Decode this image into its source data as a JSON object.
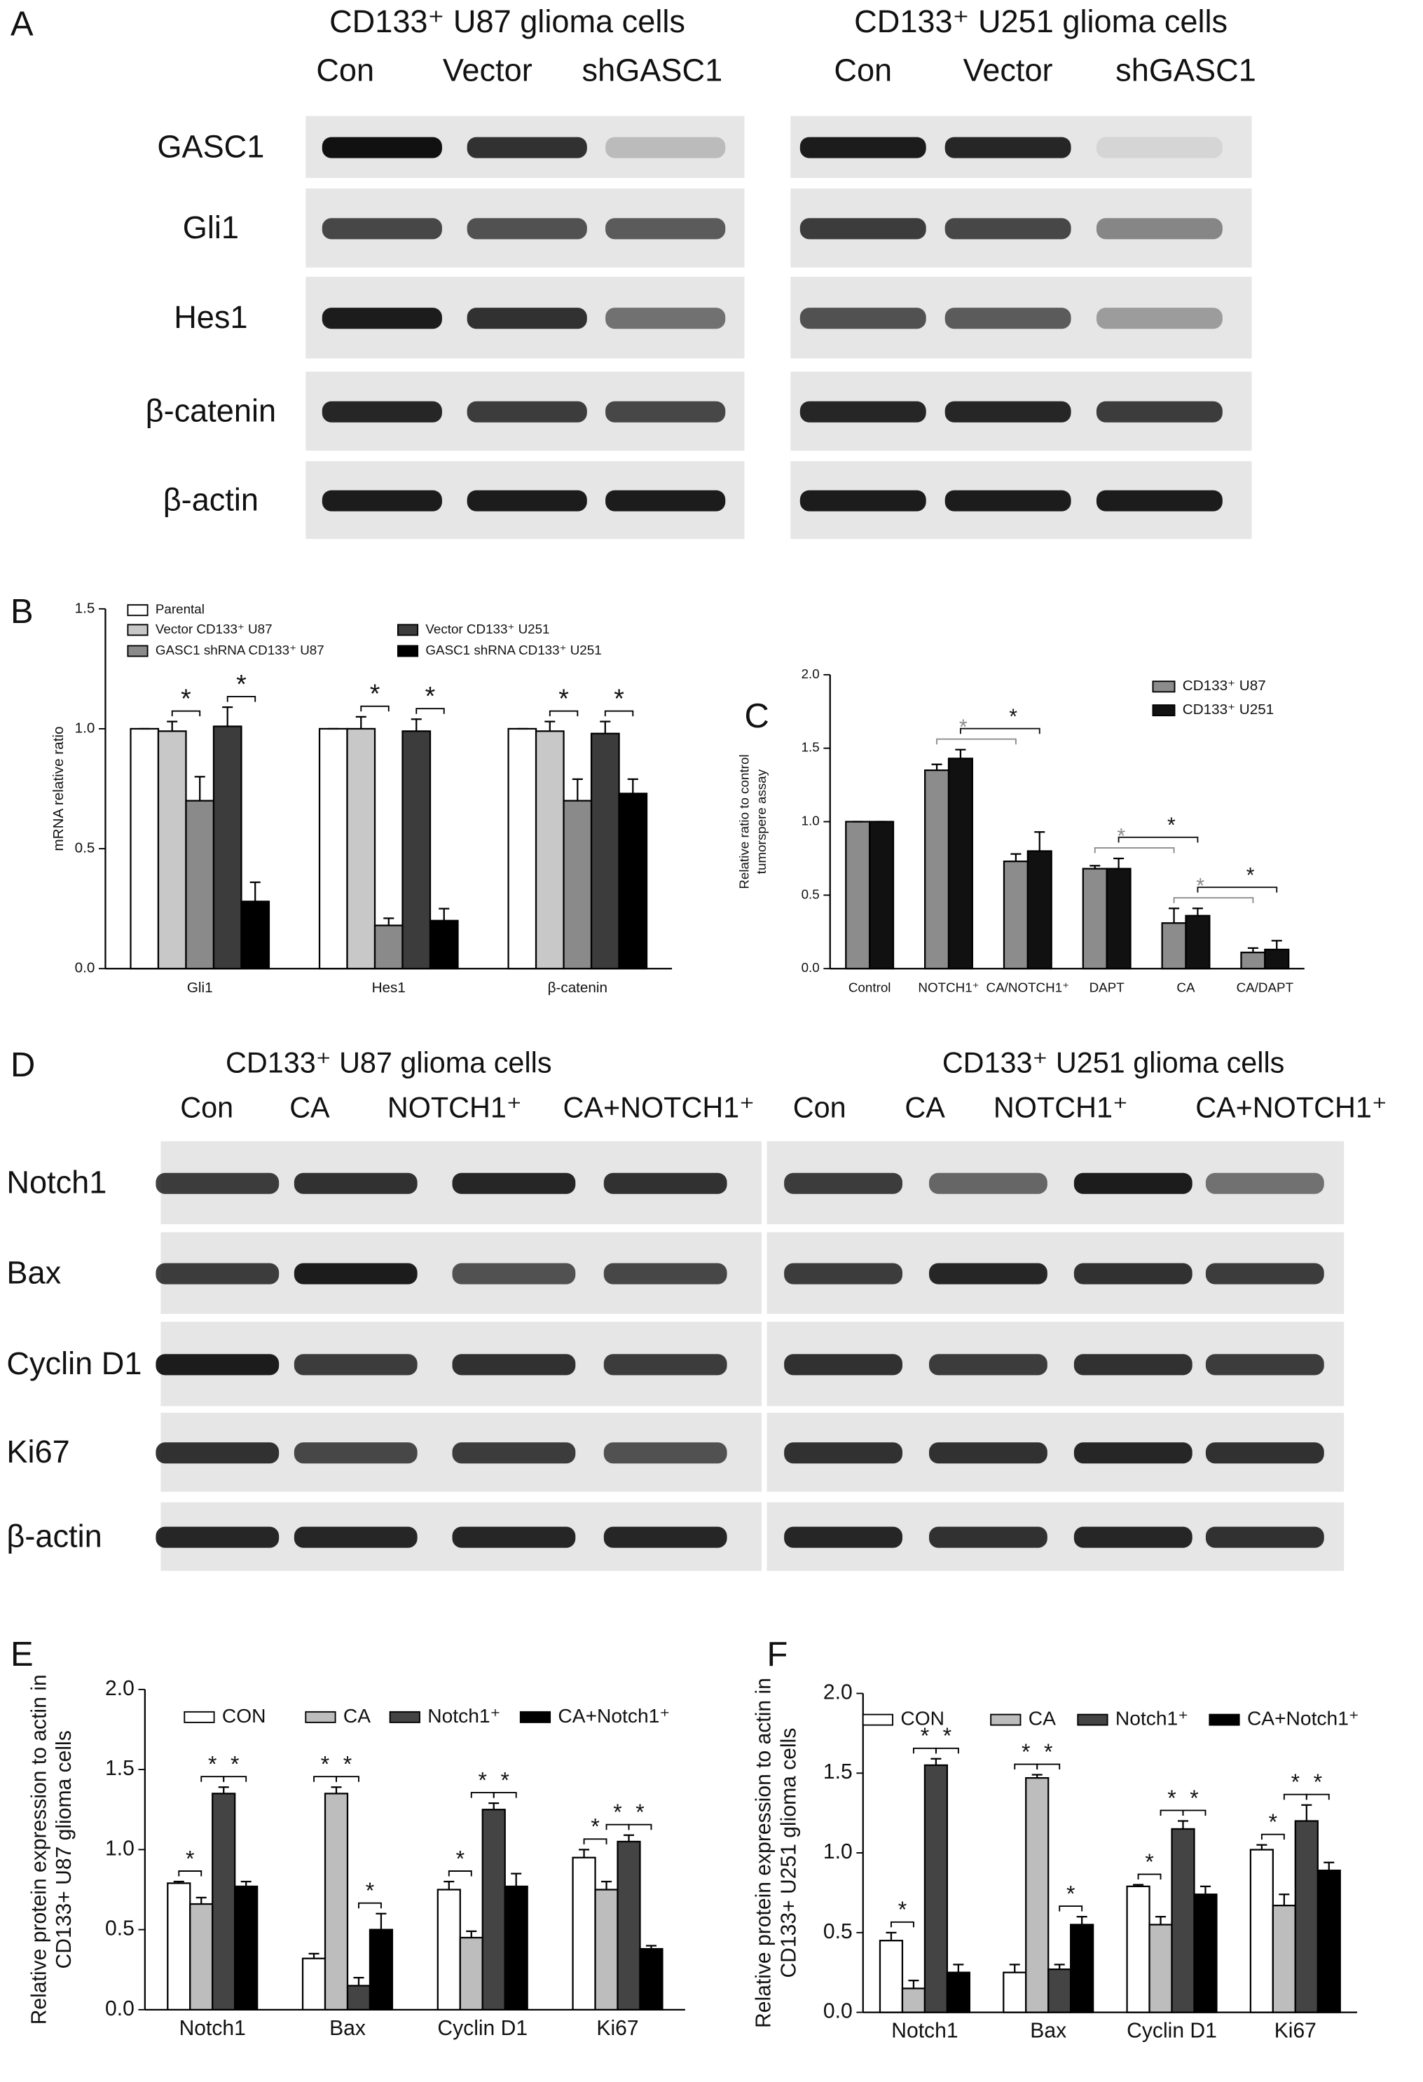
{
  "panel_labels": [
    "A",
    "B",
    "C",
    "D",
    "E",
    "F"
  ],
  "blots": [
    {
      "rows": [
        "GASC1",
        "Gli1",
        "Hes1",
        "β-catenin",
        "β-actin"
      ],
      "groups": [
        {
          "title": "CD133⁺ U87 glioma cells",
          "lanes": [
            "Con",
            "Vector",
            "shGASC1"
          ]
        },
        {
          "title": "CD133⁺ U251 glioma cells",
          "lanes": [
            "Con",
            "Vector",
            "shGASC1"
          ]
        }
      ]
    },
    {
      "rows": [
        "Notch1",
        "Bax",
        "Cyclin D1",
        "Ki67",
        "β-actin"
      ],
      "groups": [
        {
          "title": "CD133⁺ U87 glioma cells",
          "lanes": [
            "Con",
            "CA",
            "NOTCH1⁺",
            "CA+NOTCH1⁺"
          ]
        },
        {
          "title": "CD133⁺ U251 glioma cells",
          "lanes": [
            "Con",
            "CA",
            "NOTCH1⁺",
            "CA+NOTCH1⁺"
          ]
        }
      ]
    }
  ],
  "chart_data": [
    {
      "type": "bar",
      "ylabel": [
        "mRNA relative ratio"
      ],
      "categories": [
        "Gli1",
        "Hes1",
        "β-catenin"
      ],
      "ylim": [
        0,
        1.5
      ],
      "yticks": [
        {
          "value": 0,
          "label": "0.0"
        },
        0.5,
        {
          "value": 1,
          "label": "1.0"
        },
        1.5
      ],
      "series": [
        {
          "name": "Parental",
          "color": "#ffffff",
          "values": [
            1,
            1,
            1
          ],
          "errors": [
            0,
            0,
            0
          ]
        },
        {
          "name": "Vector CD133⁺ U87",
          "color": "#c8c8c8",
          "values": [
            0.99,
            1.0,
            0.99
          ],
          "errors": [
            0.04,
            0.05,
            0.04
          ]
        },
        {
          "name": "GASC1 shRNA CD133⁺ U87",
          "color": "#8a8a8a",
          "values": [
            0.7,
            0.18,
            0.7
          ],
          "errors": [
            0.1,
            0.03,
            0.09
          ]
        },
        {
          "name": "Vector CD133⁺ U251",
          "color": "#3c3c3c",
          "values": [
            1.01,
            0.99,
            0.98
          ],
          "errors": [
            0.08,
            0.05,
            0.05
          ]
        },
        {
          "name": "GASC1 shRNA CD133⁺ U251",
          "color": "#000000",
          "values": [
            0.28,
            0.2,
            0.73
          ],
          "errors": [
            0.08,
            0.05,
            0.06
          ]
        }
      ],
      "significance_label": "*",
      "significance": [
        {
          "category": 0,
          "series": [
            1,
            2
          ]
        },
        {
          "category": 0,
          "series": [
            3,
            4
          ]
        },
        {
          "category": 1,
          "series": [
            1,
            2
          ]
        },
        {
          "category": 1,
          "series": [
            3,
            4
          ]
        },
        {
          "category": 2,
          "series": [
            1,
            2
          ]
        },
        {
          "category": 2,
          "series": [
            3,
            4
          ]
        }
      ]
    },
    {
      "type": "bar",
      "ylabel": [
        "Relative ratio to control",
        "tumorspere assay"
      ],
      "categories": [
        "Control",
        "NOTCH1⁺",
        "CA/NOTCH1⁺",
        "DAPT",
        "CA",
        "CA/DAPT"
      ],
      "ylim": [
        0,
        2
      ],
      "yticks": [
        {
          "value": 0,
          "label": "0.0"
        },
        0.5,
        {
          "value": 1,
          "label": "1.0"
        },
        1.5,
        {
          "value": 2,
          "label": "2.0"
        }
      ],
      "series": [
        {
          "name": "CD133⁺ U87",
          "color": "#8c8c8c",
          "values": [
            1,
            1.35,
            0.73,
            0.68,
            0.31,
            0.11
          ],
          "errors": [
            0,
            0.04,
            0.05,
            0.02,
            0.1,
            0.03
          ]
        },
        {
          "name": "CD133⁺ U251",
          "color": "#111111",
          "values": [
            1,
            1.43,
            0.8,
            0.68,
            0.36,
            0.13
          ],
          "errors": [
            0,
            0.06,
            0.13,
            0.07,
            0.05,
            0.06
          ]
        }
      ],
      "significance_label": "*",
      "significance": [
        {
          "categories": [
            1,
            2
          ]
        },
        {
          "categories": [
            3,
            4
          ]
        },
        {
          "categories": [
            4,
            5
          ]
        }
      ]
    },
    {
      "type": "bar",
      "ylabel": [
        "Relative protein expression to actin in",
        "CD133+ U87 glioma cells"
      ],
      "categories": [
        "Notch1",
        "Bax",
        "Cyclin D1",
        "Ki67"
      ],
      "ylim": [
        0,
        2
      ],
      "yticks": [
        {
          "value": 0,
          "label": "0.0"
        },
        0.5,
        {
          "value": 1,
          "label": "1.0"
        },
        1.5,
        {
          "value": 2,
          "label": "2.0"
        }
      ],
      "series": [
        {
          "name": "CON",
          "color": "#ffffff",
          "values": [
            0.79,
            0.32,
            0.75,
            0.95
          ],
          "errors": [
            0.01,
            0.03,
            0.05,
            0.05
          ]
        },
        {
          "name": "CA",
          "color": "#bdbdbd",
          "values": [
            0.66,
            1.35,
            0.45,
            0.75
          ],
          "errors": [
            0.04,
            0.04,
            0.04,
            0.05
          ]
        },
        {
          "name": "Notch1⁺",
          "color": "#444444",
          "values": [
            1.35,
            0.15,
            1.25,
            1.05
          ],
          "errors": [
            0.04,
            0.05,
            0.04,
            0.04
          ]
        },
        {
          "name": "CA+Notch1⁺",
          "color": "#000000",
          "values": [
            0.77,
            0.5,
            0.77,
            0.38
          ],
          "errors": [
            0.03,
            0.1,
            0.08,
            0.02
          ]
        }
      ],
      "significance_label": "*",
      "significance": [
        {
          "category": 0,
          "series": [
            0,
            1
          ]
        },
        {
          "category": 0,
          "series": [
            1,
            2
          ]
        },
        {
          "category": 0,
          "series": [
            2,
            3
          ]
        },
        {
          "category": 1,
          "series": [
            0,
            1
          ]
        },
        {
          "category": 1,
          "series": [
            1,
            2
          ]
        },
        {
          "category": 1,
          "series": [
            2,
            3
          ]
        },
        {
          "category": 2,
          "series": [
            0,
            1
          ]
        },
        {
          "category": 2,
          "series": [
            1,
            2
          ]
        },
        {
          "category": 2,
          "series": [
            2,
            3
          ]
        },
        {
          "category": 3,
          "series": [
            0,
            1
          ]
        },
        {
          "category": 3,
          "series": [
            1,
            2
          ]
        },
        {
          "category": 3,
          "series": [
            2,
            3
          ]
        }
      ]
    },
    {
      "type": "bar",
      "ylabel": [
        "Relative protein expression to actin in",
        "CD133+ U251 glioma cells"
      ],
      "categories": [
        "Notch1",
        "Bax",
        "Cyclin D1",
        "Ki67"
      ],
      "ylim": [
        0,
        2
      ],
      "yticks": [
        {
          "value": 0,
          "label": "0.0"
        },
        0.5,
        {
          "value": 1,
          "label": "1.0"
        },
        1.5,
        {
          "value": 2,
          "label": "2.0"
        }
      ],
      "series": [
        {
          "name": "CON",
          "color": "#ffffff",
          "values": [
            0.45,
            0.25,
            0.79,
            1.02
          ],
          "errors": [
            0.05,
            0.05,
            0.01,
            0.03
          ]
        },
        {
          "name": "CA",
          "color": "#bdbdbd",
          "values": [
            0.15,
            1.47,
            0.55,
            0.67
          ],
          "errors": [
            0.05,
            0.02,
            0.05,
            0.07
          ]
        },
        {
          "name": "Notch1⁺",
          "color": "#444444",
          "values": [
            1.55,
            0.27,
            1.15,
            1.2
          ],
          "errors": [
            0.04,
            0.03,
            0.05,
            0.1
          ]
        },
        {
          "name": "CA+Notch1⁺",
          "color": "#000000",
          "values": [
            0.25,
            0.55,
            0.74,
            0.89
          ],
          "errors": [
            0.05,
            0.05,
            0.05,
            0.05
          ]
        }
      ],
      "significance_label": "*",
      "significance": [
        {
          "category": 0,
          "series": [
            0,
            1
          ]
        },
        {
          "category": 0,
          "series": [
            1,
            2
          ]
        },
        {
          "category": 0,
          "series": [
            2,
            3
          ]
        },
        {
          "category": 1,
          "series": [
            0,
            1
          ]
        },
        {
          "category": 1,
          "series": [
            1,
            2
          ]
        },
        {
          "category": 1,
          "series": [
            2,
            3
          ]
        },
        {
          "category": 2,
          "series": [
            0,
            1
          ]
        },
        {
          "category": 2,
          "series": [
            1,
            2
          ]
        },
        {
          "category": 2,
          "series": [
            2,
            3
          ]
        },
        {
          "category": 3,
          "series": [
            0,
            1
          ]
        },
        {
          "category": 3,
          "series": [
            1,
            2
          ]
        },
        {
          "category": 3,
          "series": [
            2,
            3
          ]
        }
      ]
    }
  ]
}
